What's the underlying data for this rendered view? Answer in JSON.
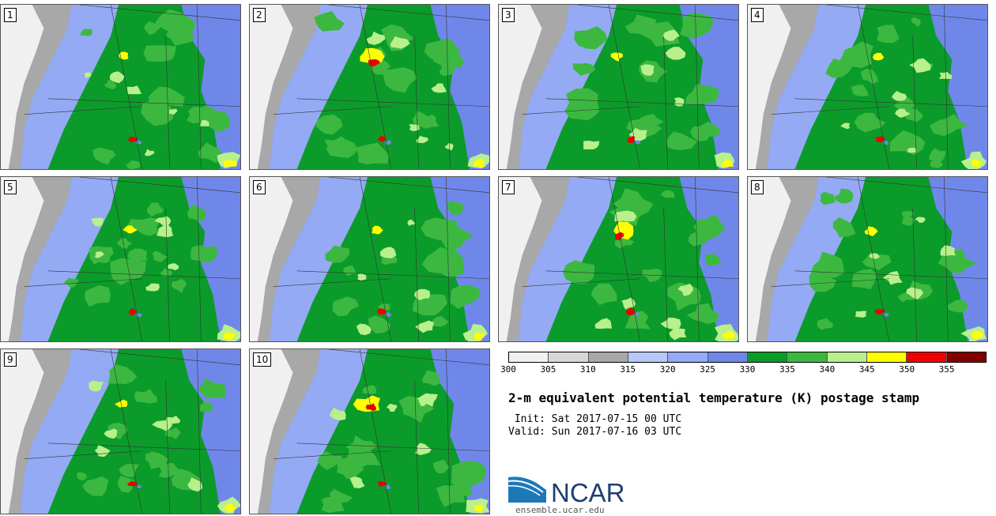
{
  "panels": [
    {
      "label": "1",
      "variant": 0
    },
    {
      "label": "2",
      "variant": 1
    },
    {
      "label": "3",
      "variant": 2
    },
    {
      "label": "4",
      "variant": 3
    },
    {
      "label": "5",
      "variant": 4
    },
    {
      "label": "6",
      "variant": 5
    },
    {
      "label": "7",
      "variant": 6
    },
    {
      "label": "8",
      "variant": 7
    },
    {
      "label": "9",
      "variant": 8
    },
    {
      "label": "10",
      "variant": 9
    }
  ],
  "colorbar": {
    "colors": [
      "#f0f0f0",
      "#d7d7d7",
      "#a8a8a8",
      "#b8c8f8",
      "#94aaf4",
      "#7087ea",
      "#0b9b2a",
      "#3cb840",
      "#b8f08c",
      "#ffff00",
      "#ee0000",
      "#800000"
    ],
    "ticks": [
      "300",
      "305",
      "310",
      "315",
      "320",
      "325",
      "330",
      "335",
      "340",
      "345",
      "350",
      "355"
    ]
  },
  "title": "2-m equivalent potential temperature (K) postage stamp",
  "init_line": " Init: Sat 2017-07-15 00 UTC",
  "valid_line": "Valid: Sun 2017-07-16 03 UTC",
  "logo_text": "NCAR",
  "site": "ensemble.ucar.edu"
}
